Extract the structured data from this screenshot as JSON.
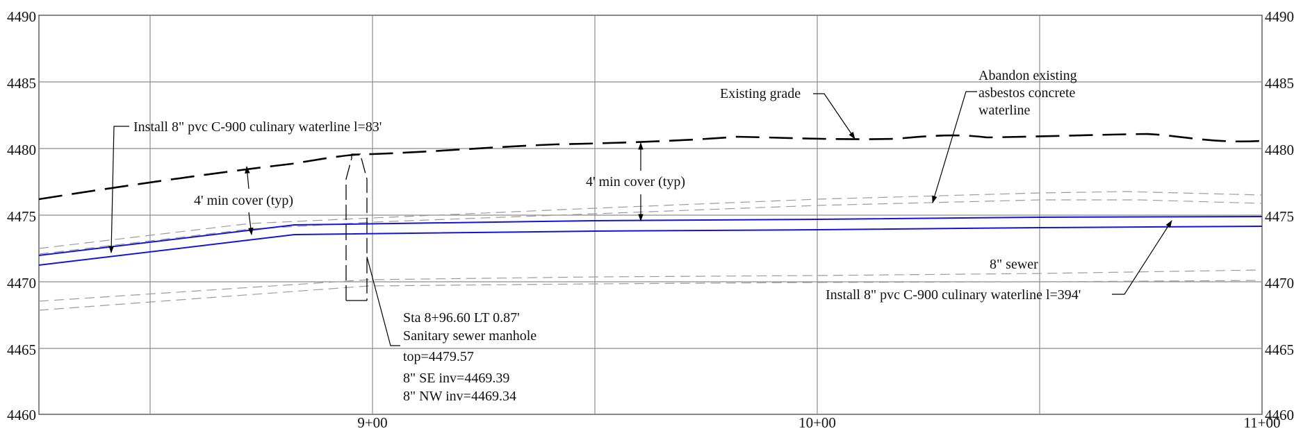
{
  "colors": {
    "waterline": "#1414d8",
    "grade": "#000000",
    "utility": "#9a9a9a",
    "grid": "#8c8c8c",
    "text": "#111111"
  },
  "axes": {
    "elevation_ticks": [
      "4460",
      "4465",
      "4470",
      "4475",
      "4480",
      "4485",
      "4490"
    ],
    "station_ticks": [
      "9+00",
      "10+00",
      "11+00"
    ]
  },
  "labels": {
    "waterline_a": "Install 8\" pvc C-900 culinary waterline l=83'",
    "waterline_b": "Install 8\" pvc C-900 culinary waterline l=394'",
    "cover_1": "4' min cover (typ)",
    "cover_2": "4' min cover (typ)",
    "existing_grade": "Existing grade",
    "abandon_1": "Abandon existing",
    "abandon_2": "asbestos concrete",
    "abandon_3": "waterline",
    "sewer": "8\" sewer",
    "mh_line1": "Sta 8+96.60 LT 0.87'",
    "mh_line2": "Sanitary sewer manhole",
    "mh_line3": "top=4479.57",
    "mh_line4": "8\" SE inv=4469.39",
    "mh_line5": "8\" NW inv=4469.34"
  }
}
